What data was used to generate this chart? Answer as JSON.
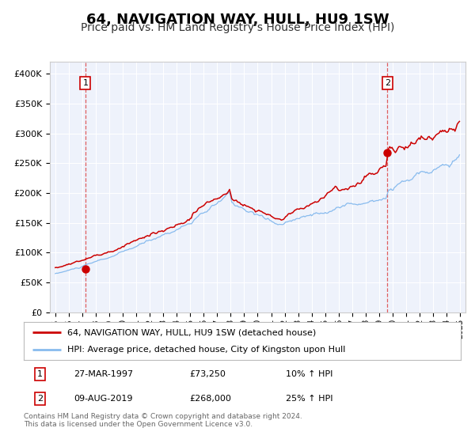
{
  "title": "64, NAVIGATION WAY, HULL, HU9 1SW",
  "subtitle": "Price paid vs. HM Land Registry's House Price Index (HPI)",
  "title_fontsize": 13,
  "subtitle_fontsize": 10,
  "background_color": "#ffffff",
  "plot_bg_color": "#eef2fb",
  "grid_color": "#ffffff",
  "red_line_color": "#cc0000",
  "blue_line_color": "#88bbee",
  "marker_color": "#cc0000",
  "dashed_line_color": "#dd4444",
  "ylim": [
    0,
    420000
  ],
  "yticks": [
    0,
    50000,
    100000,
    150000,
    200000,
    250000,
    300000,
    350000,
    400000
  ],
  "ytick_labels": [
    "£0",
    "£50K",
    "£100K",
    "£150K",
    "£200K",
    "£250K",
    "£300K",
    "£350K",
    "£400K"
  ],
  "xtick_years": [
    1995,
    1996,
    1997,
    1998,
    1999,
    2000,
    2001,
    2002,
    2003,
    2004,
    2005,
    2006,
    2007,
    2008,
    2009,
    2010,
    2011,
    2012,
    2013,
    2014,
    2015,
    2016,
    2017,
    2018,
    2019,
    2020,
    2021,
    2022,
    2023,
    2024,
    2025
  ],
  "transaction1_date": 1997.23,
  "transaction1_value": 73250,
  "transaction1_label": "1",
  "transaction2_date": 2019.62,
  "transaction2_value": 268000,
  "transaction2_label": "2",
  "legend_line1": "64, NAVIGATION WAY, HULL, HU9 1SW (detached house)",
  "legend_line2": "HPI: Average price, detached house, City of Kingston upon Hull",
  "table_row1": [
    "1",
    "27-MAR-1997",
    "£73,250",
    "10% ↑ HPI"
  ],
  "table_row2": [
    "2",
    "09-AUG-2019",
    "£268,000",
    "25% ↑ HPI"
  ],
  "footnote": "Contains HM Land Registry data © Crown copyright and database right 2024.\nThis data is licensed under the Open Government Licence v3.0."
}
